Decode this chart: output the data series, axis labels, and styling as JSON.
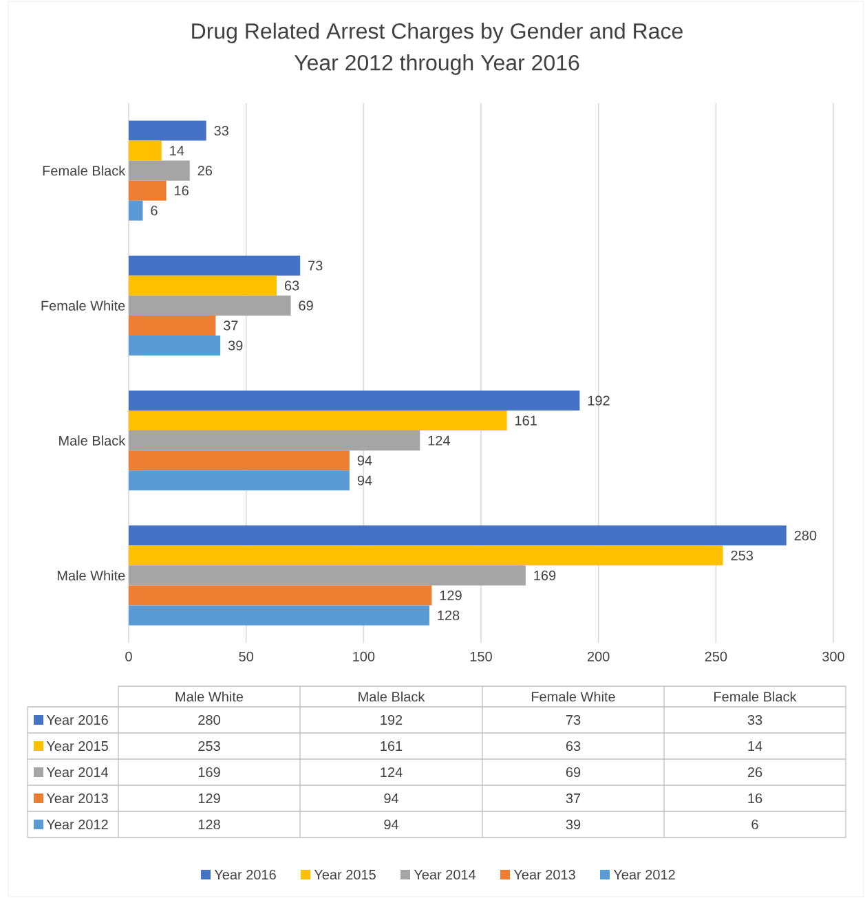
{
  "chart_data": {
    "type": "bar",
    "orientation": "horizontal",
    "title": "Drug Related Arrest Charges by Gender and Race",
    "subtitle": "Year 2012 through Year 2016",
    "categories": [
      "Female Black",
      "Female White",
      "Male Black",
      "Male White"
    ],
    "series": [
      {
        "name": "Year 2016",
        "color": "#4472c4",
        "values": [
          33,
          73,
          192,
          280
        ],
        "value_labels": [
          "33",
          "73",
          "192",
          "280"
        ]
      },
      {
        "name": "Year 2015",
        "color": "#ffc000",
        "values": [
          14,
          63,
          161,
          253
        ],
        "value_labels": [
          "14",
          "63",
          "161",
          "253"
        ]
      },
      {
        "name": "Year 2014",
        "color": "#a5a5a5",
        "values": [
          26,
          69,
          124,
          169
        ],
        "value_labels": [
          "26",
          "69",
          "124",
          "169"
        ]
      },
      {
        "name": "Year 2013",
        "color": "#ed7d31",
        "values": [
          16,
          37,
          94,
          129
        ],
        "value_labels": [
          "16",
          "37",
          "94",
          "129"
        ]
      },
      {
        "name": "Year 2012",
        "color": "#5b9bd5",
        "values": [
          6,
          39,
          94,
          128
        ],
        "value_labels": [
          "6",
          "39",
          "94",
          "128"
        ]
      }
    ],
    "xlim": [
      0,
      300
    ],
    "xticks": [
      0,
      50,
      100,
      150,
      200,
      250,
      300
    ],
    "grid": "x",
    "legend": "bottom"
  }
}
